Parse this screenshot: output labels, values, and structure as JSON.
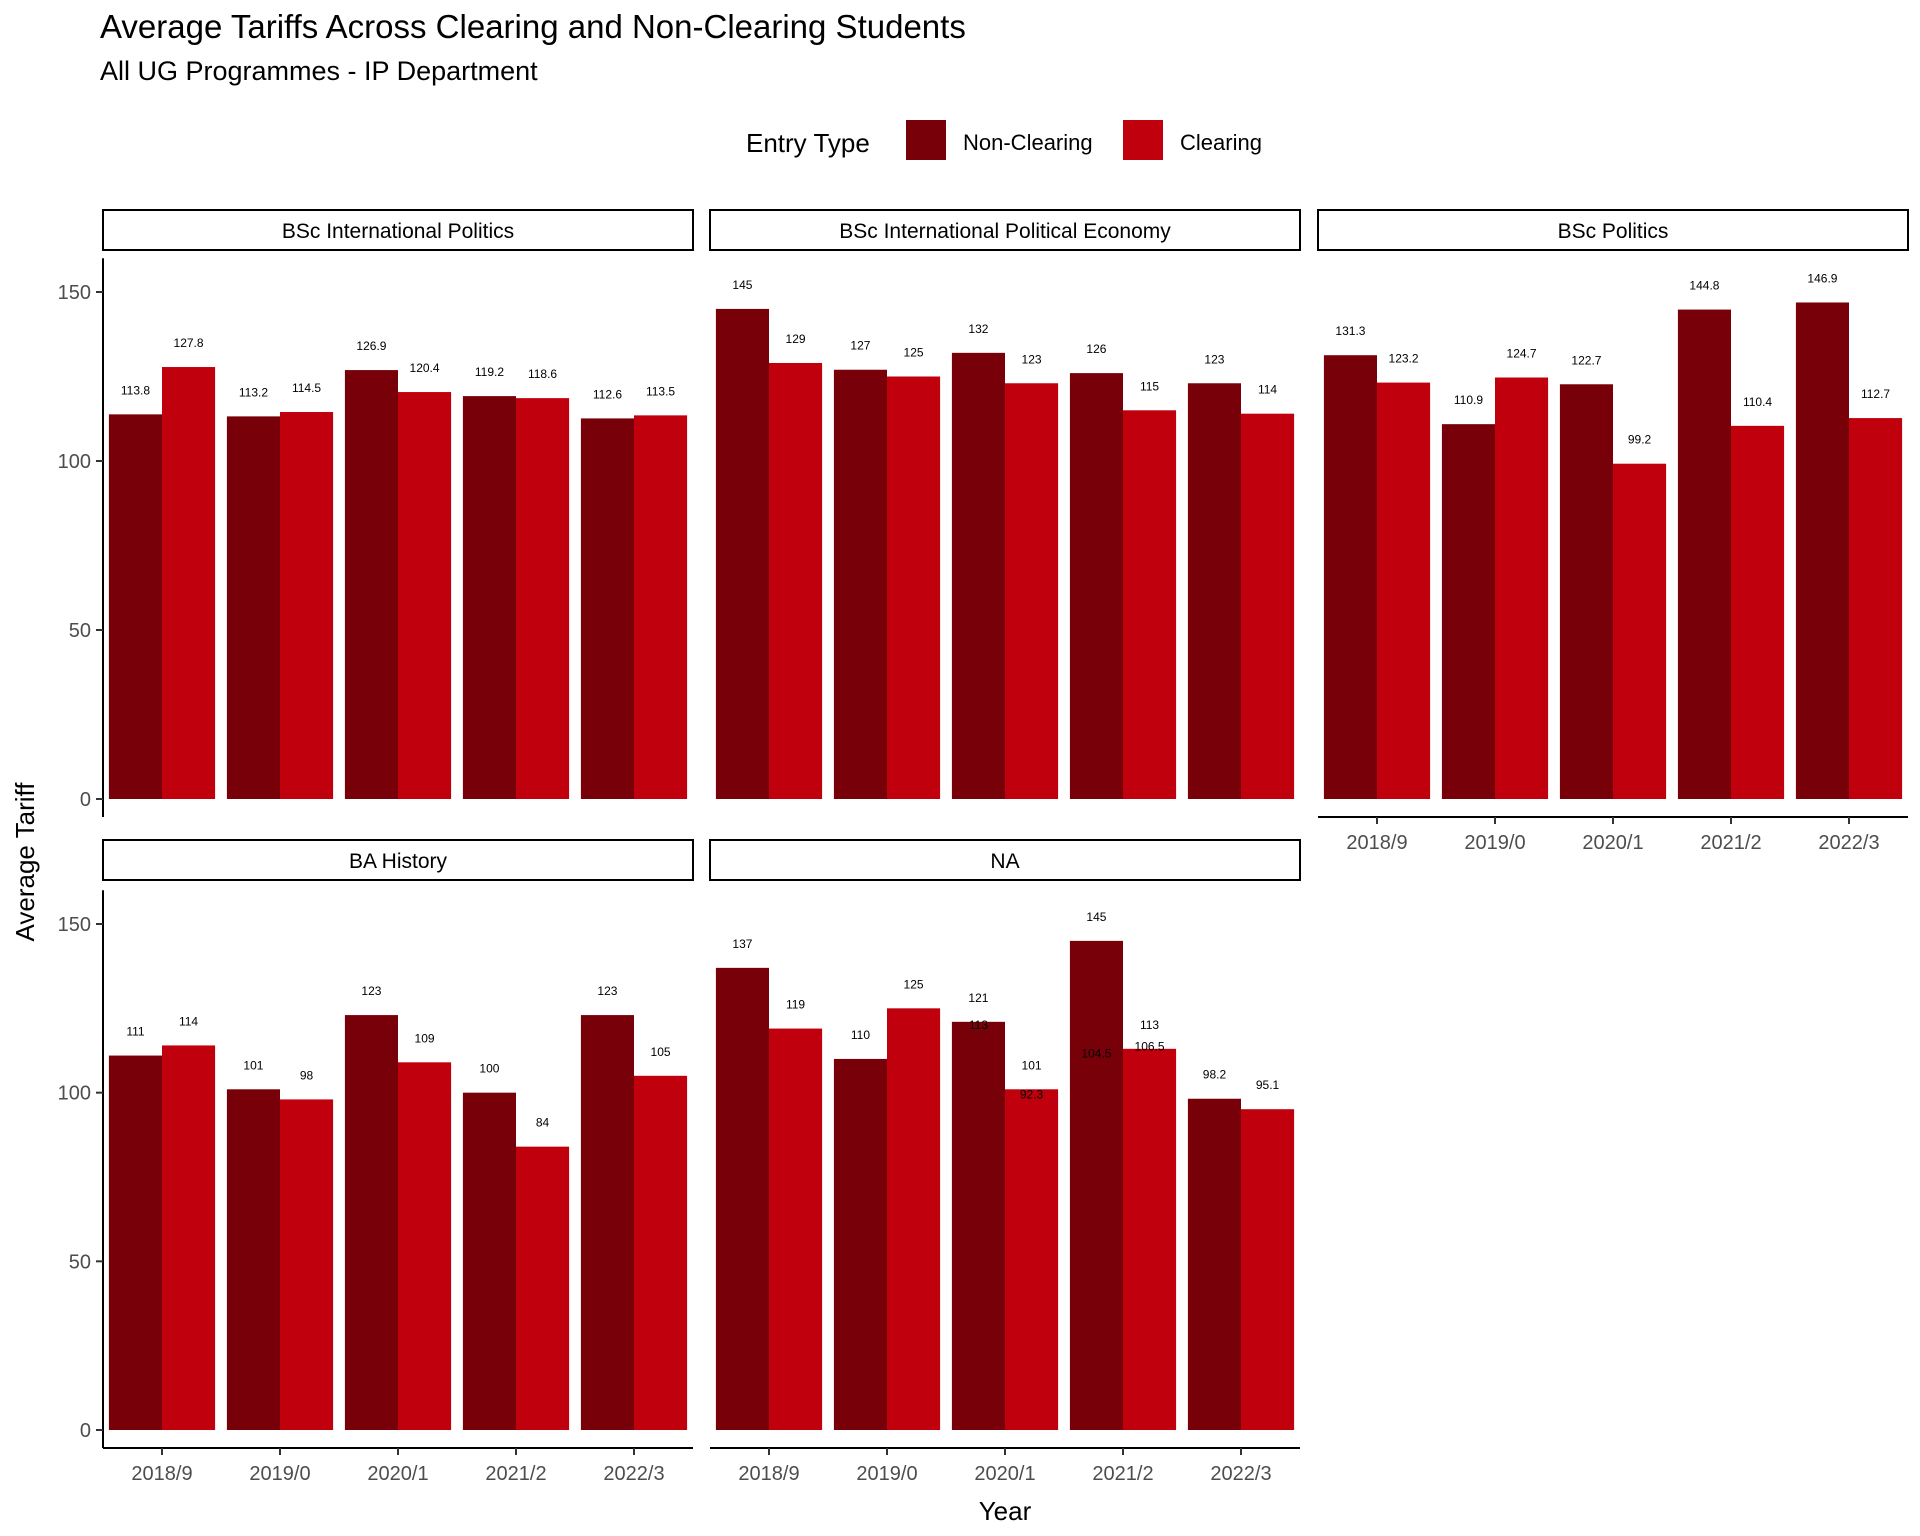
{
  "chart_data": {
    "type": "bar",
    "title": "Average Tariffs Across Clearing and Non-Clearing Students",
    "subtitle": "All UG Programmes - IP Department",
    "xlabel": "Year",
    "ylabel": "Average Tariff",
    "ylim": [
      0,
      160
    ],
    "yticks": [
      0,
      50,
      100,
      150
    ],
    "categories": [
      "2018/9",
      "2019/0",
      "2020/1",
      "2021/2",
      "2022/3"
    ],
    "legend": {
      "title": "Entry Type",
      "position": "top",
      "items": [
        {
          "name": "Non-Clearing",
          "color": "#780008"
        },
        {
          "name": "Clearing",
          "color": "#c0000c"
        }
      ]
    },
    "colors": {
      "Non-Clearing": "#780008",
      "Clearing": "#c0000c"
    },
    "facets": [
      {
        "title": "BSc International Politics",
        "series": [
          {
            "name": "Non-Clearing",
            "values": [
              113.8,
              113.2,
              126.9,
              119.2,
              112.6
            ],
            "labels": [
              "113.8",
              "113.2",
              "126.9",
              "119.2",
              "112.6"
            ]
          },
          {
            "name": "Clearing",
            "values": [
              127.8,
              114.5,
              120.4,
              118.6,
              113.5
            ],
            "labels": [
              "127.8",
              "114.5",
              "120.4",
              "118.6",
              "113.5"
            ]
          }
        ]
      },
      {
        "title": "BSc International Political Economy",
        "series": [
          {
            "name": "Non-Clearing",
            "values": [
              145,
              127,
              132,
              126,
              123
            ],
            "labels": [
              "145",
              "127",
              "132",
              "126",
              "123"
            ]
          },
          {
            "name": "Clearing",
            "values": [
              129,
              125,
              123,
              115,
              114
            ],
            "labels": [
              "129",
              "125",
              "123",
              "115",
              "114"
            ]
          }
        ]
      },
      {
        "title": "BSc Politics",
        "series": [
          {
            "name": "Non-Clearing",
            "values": [
              131.3,
              110.9,
              122.7,
              144.8,
              146.9
            ],
            "labels": [
              "131.3",
              "110.9",
              "122.7",
              "144.8",
              "146.9"
            ]
          },
          {
            "name": "Clearing",
            "values": [
              123.2,
              124.7,
              99.2,
              110.4,
              112.7
            ],
            "labels": [
              "123.2",
              "124.7",
              "99.2",
              "110.4",
              "112.7"
            ]
          }
        ]
      },
      {
        "title": "BA History",
        "series": [
          {
            "name": "Non-Clearing",
            "values": [
              111,
              101,
              123,
              100,
              123
            ],
            "labels": [
              "111",
              "101",
              "123",
              "100",
              "123"
            ]
          },
          {
            "name": "Clearing",
            "values": [
              114,
              98,
              109,
              84,
              105
            ],
            "labels": [
              "114",
              "98",
              "109",
              "84",
              "105"
            ]
          }
        ]
      },
      {
        "title": "NA",
        "series": [
          {
            "name": "Non-Clearing",
            "values": [
              137,
              110,
              121,
              145,
              98.2
            ],
            "labels": [
              "137",
              "110",
              "121",
              "145",
              "98.2"
            ]
          },
          {
            "name": "Clearing",
            "values": [
              119,
              125,
              101,
              113,
              95.1
            ],
            "labels": [
              "119",
              "125",
              "101",
              "113",
              "95.1"
            ]
          }
        ],
        "extra_labels": [
          {
            "category": "2020/1",
            "series": "Non-Clearing",
            "value": 113,
            "label": "113"
          },
          {
            "category": "2020/1",
            "series": "Clearing",
            "value": 92.3,
            "label": "92.3"
          },
          {
            "category": "2021/2",
            "series": "Non-Clearing",
            "value": 104.5,
            "label": "104.5"
          },
          {
            "category": "2021/2",
            "series": "Clearing",
            "value": 106.5,
            "label": "106.5"
          }
        ]
      }
    ]
  }
}
